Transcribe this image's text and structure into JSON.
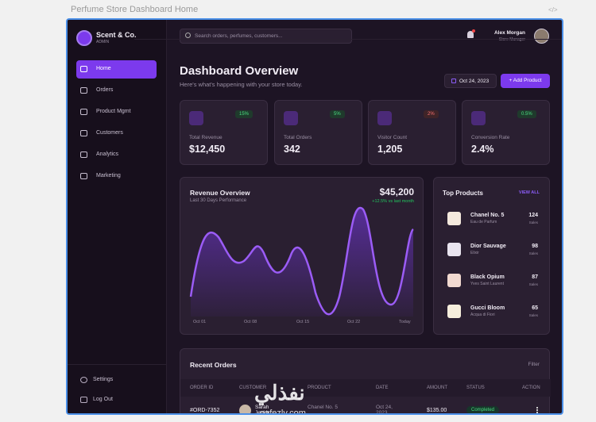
{
  "window_title": "Perfume Store Dashboard Home",
  "code_icon": "</>",
  "sidebar": {
    "brand": "Scent & Co.",
    "role": "ADMIN",
    "nav": [
      "Home",
      "Orders",
      "Product Mgmt",
      "Customers",
      "Analytics",
      "Marketing"
    ],
    "bottom": [
      "Settings",
      "Log Out"
    ]
  },
  "header": {
    "search_placeholder": "Search orders, perfumes, customers...",
    "user_name": "Alex Morgan",
    "user_role": "Store Manager"
  },
  "page": {
    "title": "Dashboard Overview",
    "subtitle": "Here's what's happening with your store today.",
    "date": "Oct 24, 2023",
    "add_button": "+ Add Product"
  },
  "stats": [
    {
      "label": "Total Revenue",
      "value": "$12,450",
      "change": "15%"
    },
    {
      "label": "Total Orders",
      "value": "342",
      "change": "5%"
    },
    {
      "label": "Visitor Count",
      "value": "1,205",
      "change": "2%"
    },
    {
      "label": "Conversion Rate",
      "value": "2.4%",
      "change": "0.5%"
    }
  ],
  "revenue": {
    "title": "Revenue Overview",
    "subtitle": "Last 30 Days Performance",
    "total": "$45,200",
    "change": "+12.5% vs last month",
    "x_labels": [
      "Oct 01",
      "Oct 08",
      "Oct 15",
      "Oct 22",
      "Today"
    ]
  },
  "top_products": {
    "title": "Top Products",
    "link": "VIEW ALL",
    "items": [
      {
        "name": "Chanel No. 5",
        "sub": "Eau de Parfum",
        "sales": "124",
        "unit": "Sales"
      },
      {
        "name": "Dior Sauvage",
        "sub": "Elixir",
        "sales": "98",
        "unit": "Sales"
      },
      {
        "name": "Black Opium",
        "sub": "Yves Saint Laurent",
        "sales": "87",
        "unit": "Sales"
      },
      {
        "name": "Gucci Bloom",
        "sub": "Acqua di Fiori",
        "sales": "65",
        "unit": "Sales"
      }
    ]
  },
  "orders": {
    "title": "Recent Orders",
    "filter": "Filter",
    "columns": [
      "ORDER ID",
      "CUSTOMER",
      "PRODUCT",
      "DATE",
      "AMOUNT",
      "STATUS",
      "ACTION"
    ],
    "rows": [
      {
        "id": "#ORD-7352",
        "customer": "Sarah Jenkins",
        "product": "Chanel No. 5",
        "date": "Oct 24, 2023",
        "amount": "$135.00",
        "status": "Completed"
      }
    ]
  },
  "watermark": {
    "arabic": "نفذلي",
    "site": "nafezly.com"
  }
}
